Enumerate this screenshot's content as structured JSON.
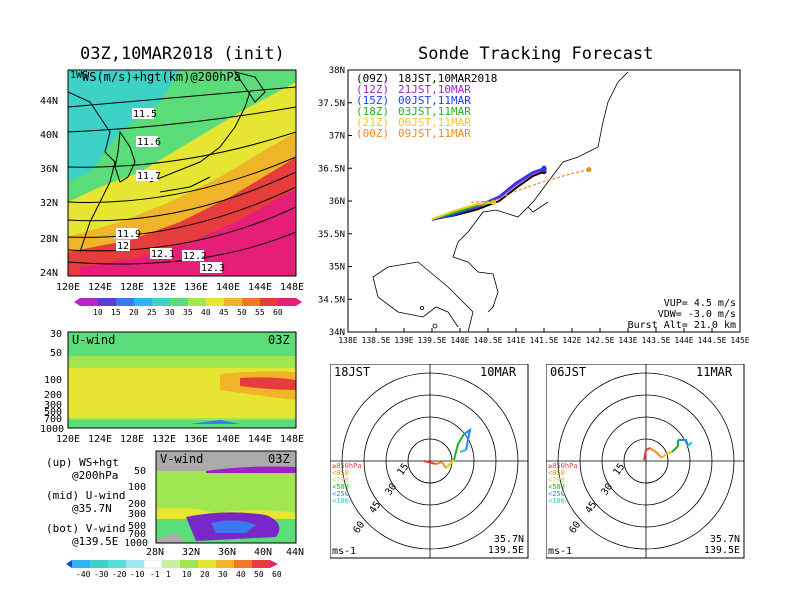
{
  "left_title": "03Z,10MAR2018 (init)",
  "right_title": "Sonde Tracking Forecast",
  "ws_map": {
    "label": "WS(m/s)+hgt(km)@200hPa",
    "corner": "1WS",
    "lat_ticks": [
      "44N",
      "40N",
      "36N",
      "32N",
      "28N",
      "24N"
    ],
    "lon_ticks": [
      "120E",
      "124E",
      "128E",
      "132E",
      "136E",
      "140E",
      "144E",
      "148E"
    ],
    "contours": [
      "11.5",
      "11.6",
      "11.7",
      "11.9",
      "12",
      "12.1",
      "12.2",
      "12.3"
    ],
    "colorbar_ticks": [
      "10",
      "15",
      "20",
      "25",
      "30",
      "35",
      "40",
      "45",
      "50",
      "55",
      "60"
    ],
    "colorbar_colors": [
      "#b428c8",
      "#5a3cdc",
      "#3c78f0",
      "#2eb4f0",
      "#3cd2c8",
      "#5adc78",
      "#a0e650",
      "#e6e632",
      "#f0b428",
      "#f07828",
      "#e63c3c",
      "#e61e78"
    ]
  },
  "uwind_panel": {
    "label": "U-wind",
    "time": "03Z",
    "y_ticks": [
      "30",
      "50",
      "100",
      "200",
      "300",
      "500",
      "700",
      "1000"
    ],
    "x_ticks": [
      "120E",
      "124E",
      "128E",
      "132E",
      "136E",
      "140E",
      "144E",
      "148E"
    ]
  },
  "vwind_panel": {
    "label": "V-wind",
    "time": "03Z",
    "y_ticks": [
      "50",
      "100",
      "200",
      "300",
      "500",
      "700",
      "1000"
    ],
    "x_ticks": [
      "28N",
      "32N",
      "36N",
      "40N",
      "44N"
    ],
    "colorbar_ticks": [
      "-40",
      "-30",
      "-20",
      "-10",
      "-1",
      "1",
      "10",
      "20",
      "30",
      "40",
      "50",
      "60"
    ]
  },
  "legend_notes": [
    {
      "head": "(up) WS+hgt",
      "sub": "@200hPa"
    },
    {
      "head": "(mid) U-wind",
      "sub": "@35.7N"
    },
    {
      "head": "(bot) V-wind",
      "sub": "@139.5E"
    }
  ],
  "track_map": {
    "lat_ticks": [
      "38N",
      "37.5N",
      "37N",
      "36.5N",
      "36N",
      "35.5N",
      "35N",
      "34.5N",
      "34N"
    ],
    "lon_ticks": [
      "138E",
      "138.5E",
      "139E",
      "139.5E",
      "140E",
      "140.5E",
      "141E",
      "141.5E",
      "142E",
      "142.5E",
      "143E",
      "143.5E",
      "144E",
      "144.5E",
      "145E"
    ],
    "legend": [
      {
        "code": "(09Z)",
        "time": "18JST,10MAR2018",
        "color": "#000000"
      },
      {
        "code": "(12Z)",
        "time": "21JST,10MAR",
        "color": "#a020c8"
      },
      {
        "code": "(15Z)",
        "time": "00JST,11MAR",
        "color": "#1e3cf0"
      },
      {
        "code": "(18Z)",
        "time": "03JST,11MAR",
        "color": "#1eb41e"
      },
      {
        "code": "(21Z)",
        "time": "06JST,11MAR",
        "color": "#f0c81e"
      },
      {
        "code": "(00Z)",
        "time": "09JST,11MAR",
        "color": "#f08c1e"
      }
    ],
    "stats": [
      "VUP= 4.5 m/s",
      "VDW= -3.0 m/s",
      "Burst Alt= 21.0 km"
    ]
  },
  "hodographs": [
    {
      "left": "18JST",
      "right": "10MAR",
      "loc1": "35.7N",
      "loc2": "139.5E",
      "unit": "ms-1"
    },
    {
      "left": "06JST",
      "right": "11MAR",
      "loc1": "35.7N",
      "loc2": "139.5E",
      "unit": "ms-1"
    }
  ],
  "hodo_rings": [
    "15",
    "30",
    "45",
    "60"
  ],
  "hodo_levels": [
    {
      "label": "≥850hPa",
      "color": "#e63c3c"
    },
    {
      "label": "<850",
      "color": "#f08c1e"
    },
    {
      "label": "<700",
      "color": "#e6c81e"
    },
    {
      "label": "<500",
      "color": "#1eb41e"
    },
    {
      "label": "<250",
      "color": "#1e8cf0"
    },
    {
      "label": "<100",
      "color": "#28c8c8"
    }
  ],
  "chart_data": {
    "type": "line",
    "title": "Sonde Tracking Forecast",
    "xlabel": "",
    "ylabel": "",
    "xlim": [
      138,
      145
    ],
    "ylim": [
      34,
      38
    ],
    "series": [
      {
        "name": "(09Z) 18JST,10MAR2018",
        "x": [
          139.5,
          139.9,
          140.3,
          140.7,
          141.0,
          141.3,
          141.5
        ],
        "y": [
          35.72,
          35.78,
          35.87,
          36.0,
          36.2,
          36.38,
          36.45
        ]
      },
      {
        "name": "(12Z) 21JST,10MAR",
        "x": [
          139.5,
          139.9,
          140.3,
          140.7,
          141.0,
          141.3,
          141.5
        ],
        "y": [
          35.72,
          35.8,
          35.9,
          36.05,
          36.25,
          36.42,
          36.48
        ]
      },
      {
        "name": "(15Z) 00JST,11MAR",
        "x": [
          139.5,
          139.9,
          140.3,
          140.7,
          141.0,
          141.3,
          141.5
        ],
        "y": [
          35.71,
          35.79,
          35.92,
          36.07,
          36.28,
          36.44,
          36.5
        ]
      },
      {
        "name": "(18Z) 03JST,11MAR",
        "x": [
          139.5,
          139.9,
          140.3,
          140.6
        ],
        "y": [
          35.72,
          35.82,
          35.93,
          35.98
        ]
      },
      {
        "name": "(21Z) 06JST,11MAR",
        "x": [
          139.5,
          139.9,
          140.3,
          140.6
        ],
        "y": [
          35.72,
          35.85,
          35.95,
          35.98
        ]
      },
      {
        "name": "(00Z) 09JST,11MAR",
        "x": [
          140.2,
          140.6,
          141.0,
          141.5,
          142.0,
          142.3
        ],
        "y": [
          35.98,
          36.0,
          36.15,
          36.3,
          36.42,
          36.48
        ]
      }
    ]
  }
}
